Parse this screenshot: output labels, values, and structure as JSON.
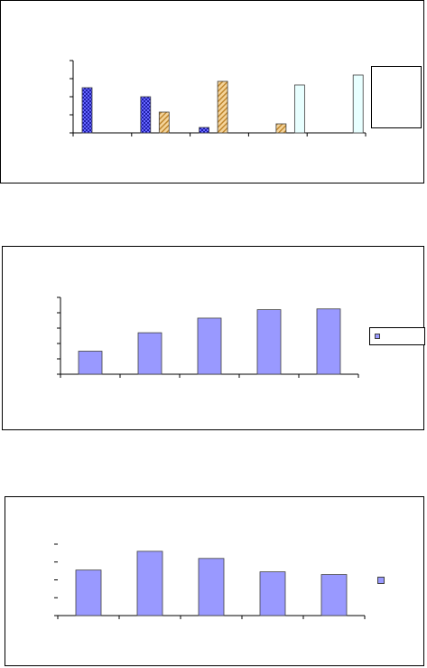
{
  "chart_data": [
    {
      "type": "bar",
      "categories": [
        "",
        "",
        "",
        "",
        ""
      ],
      "ylim": [
        0,
        4
      ],
      "grid": false,
      "legend": "right",
      "series": [
        {
          "values": [
            2.5,
            2.0,
            0.3,
            0,
            0
          ],
          "color": "#6666ff",
          "pattern": "checker"
        },
        {
          "values": [
            0,
            1.15,
            2.85,
            0.5,
            0
          ],
          "color": "#f0c080",
          "pattern": "diagonal"
        },
        {
          "values": [
            0,
            0,
            0,
            2.65,
            3.2
          ],
          "color": "#e8ffff",
          "pattern": "solid"
        }
      ]
    },
    {
      "type": "bar",
      "categories": [
        "",
        "",
        "",
        "",
        ""
      ],
      "ylim": [
        0,
        5
      ],
      "grid": false,
      "legend": "right",
      "series": [
        {
          "values": [
            1.5,
            2.7,
            3.65,
            4.2,
            4.25
          ],
          "color": "#9999ff"
        }
      ]
    },
    {
      "type": "bar",
      "categories": [
        "",
        "",
        "",
        "",
        ""
      ],
      "ylim": [
        0,
        4
      ],
      "grid": false,
      "legend": "right",
      "series": [
        {
          "values": [
            2.55,
            3.6,
            3.2,
            2.45,
            2.3
          ],
          "color": "#9999ff"
        }
      ]
    }
  ]
}
